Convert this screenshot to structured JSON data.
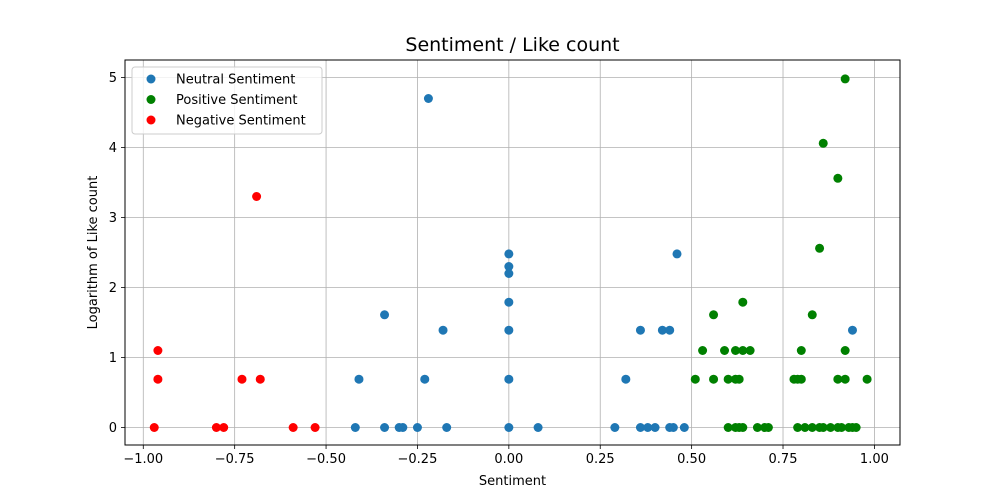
{
  "chart_data": {
    "type": "scatter",
    "title": "Sentiment / Like count",
    "xlabel": "Sentiment",
    "ylabel": "Logarithm of Like count",
    "xlim": [
      -1.05,
      1.07
    ],
    "ylim": [
      -0.25,
      5.25
    ],
    "xticks": [
      -1.0,
      -0.75,
      -0.5,
      -0.25,
      0.0,
      0.25,
      0.5,
      0.75,
      1.0
    ],
    "xtick_labels": [
      "−1.00",
      "−0.75",
      "−0.50",
      "−0.25",
      "0.00",
      "0.25",
      "0.50",
      "0.75",
      "1.00"
    ],
    "yticks": [
      0,
      1,
      2,
      3,
      4,
      5
    ],
    "ytick_labels": [
      "0",
      "1",
      "2",
      "3",
      "4",
      "5"
    ],
    "grid": true,
    "legend_position": "top-left",
    "series": [
      {
        "name": "Neutral Sentiment",
        "color": "#1f77b4",
        "points": [
          [
            -0.22,
            4.7
          ],
          [
            -0.34,
            1.61
          ],
          [
            -0.18,
            1.39
          ],
          [
            -0.41,
            0.69
          ],
          [
            -0.23,
            0.69
          ],
          [
            -0.42,
            0.0
          ],
          [
            -0.34,
            0.0
          ],
          [
            -0.3,
            0.0
          ],
          [
            -0.29,
            0.0
          ],
          [
            -0.25,
            0.0
          ],
          [
            -0.17,
            0.0
          ],
          [
            0.0,
            2.48
          ],
          [
            0.0,
            2.3
          ],
          [
            0.0,
            2.2
          ],
          [
            0.0,
            1.79
          ],
          [
            0.0,
            1.39
          ],
          [
            0.0,
            0.69
          ],
          [
            0.0,
            0.0
          ],
          [
            0.08,
            0.0
          ],
          [
            0.46,
            2.48
          ],
          [
            0.36,
            1.39
          ],
          [
            0.42,
            1.39
          ],
          [
            0.44,
            1.39
          ],
          [
            0.94,
            1.39
          ],
          [
            0.32,
            0.69
          ],
          [
            0.29,
            0.0
          ],
          [
            0.36,
            0.0
          ],
          [
            0.38,
            0.0
          ],
          [
            0.4,
            0.0
          ],
          [
            0.44,
            0.0
          ],
          [
            0.45,
            0.0
          ],
          [
            0.48,
            0.0
          ]
        ]
      },
      {
        "name": "Positive Sentiment",
        "color": "#008000",
        "points": [
          [
            0.92,
            4.98
          ],
          [
            0.86,
            4.06
          ],
          [
            0.9,
            3.56
          ],
          [
            0.85,
            2.56
          ],
          [
            0.64,
            1.79
          ],
          [
            0.56,
            1.61
          ],
          [
            0.83,
            1.61
          ],
          [
            0.53,
            1.1
          ],
          [
            0.59,
            1.1
          ],
          [
            0.62,
            1.1
          ],
          [
            0.64,
            1.1
          ],
          [
            0.66,
            1.1
          ],
          [
            0.8,
            1.1
          ],
          [
            0.92,
            1.1
          ],
          [
            0.51,
            0.69
          ],
          [
            0.56,
            0.69
          ],
          [
            0.6,
            0.69
          ],
          [
            0.62,
            0.69
          ],
          [
            0.63,
            0.69
          ],
          [
            0.78,
            0.69
          ],
          [
            0.79,
            0.69
          ],
          [
            0.8,
            0.69
          ],
          [
            0.9,
            0.69
          ],
          [
            0.92,
            0.69
          ],
          [
            0.98,
            0.69
          ],
          [
            0.6,
            0.0
          ],
          [
            0.62,
            0.0
          ],
          [
            0.63,
            0.0
          ],
          [
            0.64,
            0.0
          ],
          [
            0.68,
            0.0
          ],
          [
            0.7,
            0.0
          ],
          [
            0.71,
            0.0
          ],
          [
            0.79,
            0.0
          ],
          [
            0.81,
            0.0
          ],
          [
            0.83,
            0.0
          ],
          [
            0.85,
            0.0
          ],
          [
            0.86,
            0.0
          ],
          [
            0.88,
            0.0
          ],
          [
            0.9,
            0.0
          ],
          [
            0.91,
            0.0
          ],
          [
            0.93,
            0.0
          ],
          [
            0.94,
            0.0
          ],
          [
            0.95,
            0.0
          ]
        ]
      },
      {
        "name": "Negative Sentiment",
        "color": "#ff0000",
        "points": [
          [
            -0.69,
            3.3
          ],
          [
            -0.96,
            1.1
          ],
          [
            -0.96,
            0.69
          ],
          [
            -0.73,
            0.69
          ],
          [
            -0.68,
            0.69
          ],
          [
            -0.97,
            0.0
          ],
          [
            -0.8,
            0.0
          ],
          [
            -0.78,
            0.0
          ],
          [
            -0.59,
            0.0
          ],
          [
            -0.53,
            0.0
          ]
        ]
      }
    ]
  }
}
